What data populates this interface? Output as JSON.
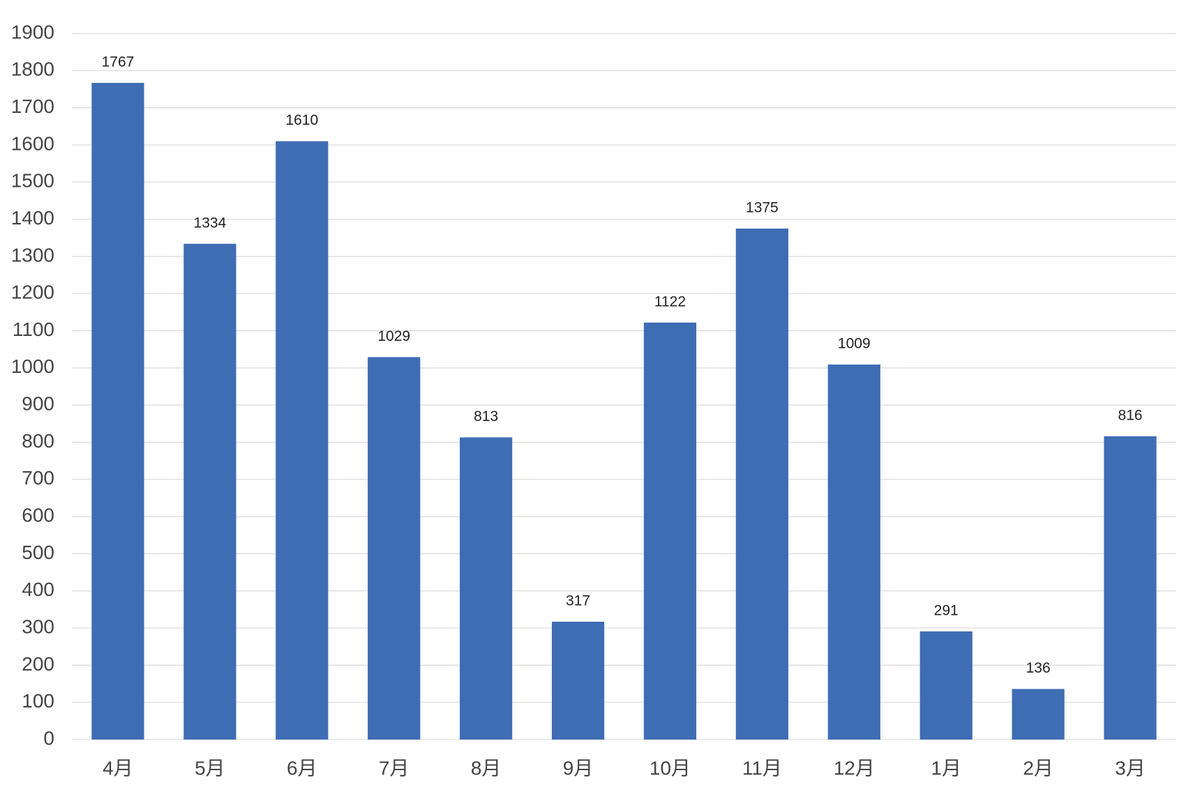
{
  "chart_data": {
    "type": "bar",
    "categories": [
      "4月",
      "5月",
      "6月",
      "7月",
      "8月",
      "9月",
      "10月",
      "11月",
      "12月",
      "1月",
      "2月",
      "3月"
    ],
    "values": [
      1767,
      1334,
      1610,
      1029,
      813,
      317,
      1122,
      1375,
      1009,
      291,
      136,
      816
    ],
    "color": "#3e6db4",
    "ylim": [
      0,
      1900
    ],
    "yticks": [
      0,
      100,
      200,
      300,
      400,
      500,
      600,
      700,
      800,
      900,
      1000,
      1100,
      1200,
      1300,
      1400,
      1500,
      1600,
      1700,
      1800,
      1900
    ],
    "grid": true
  }
}
